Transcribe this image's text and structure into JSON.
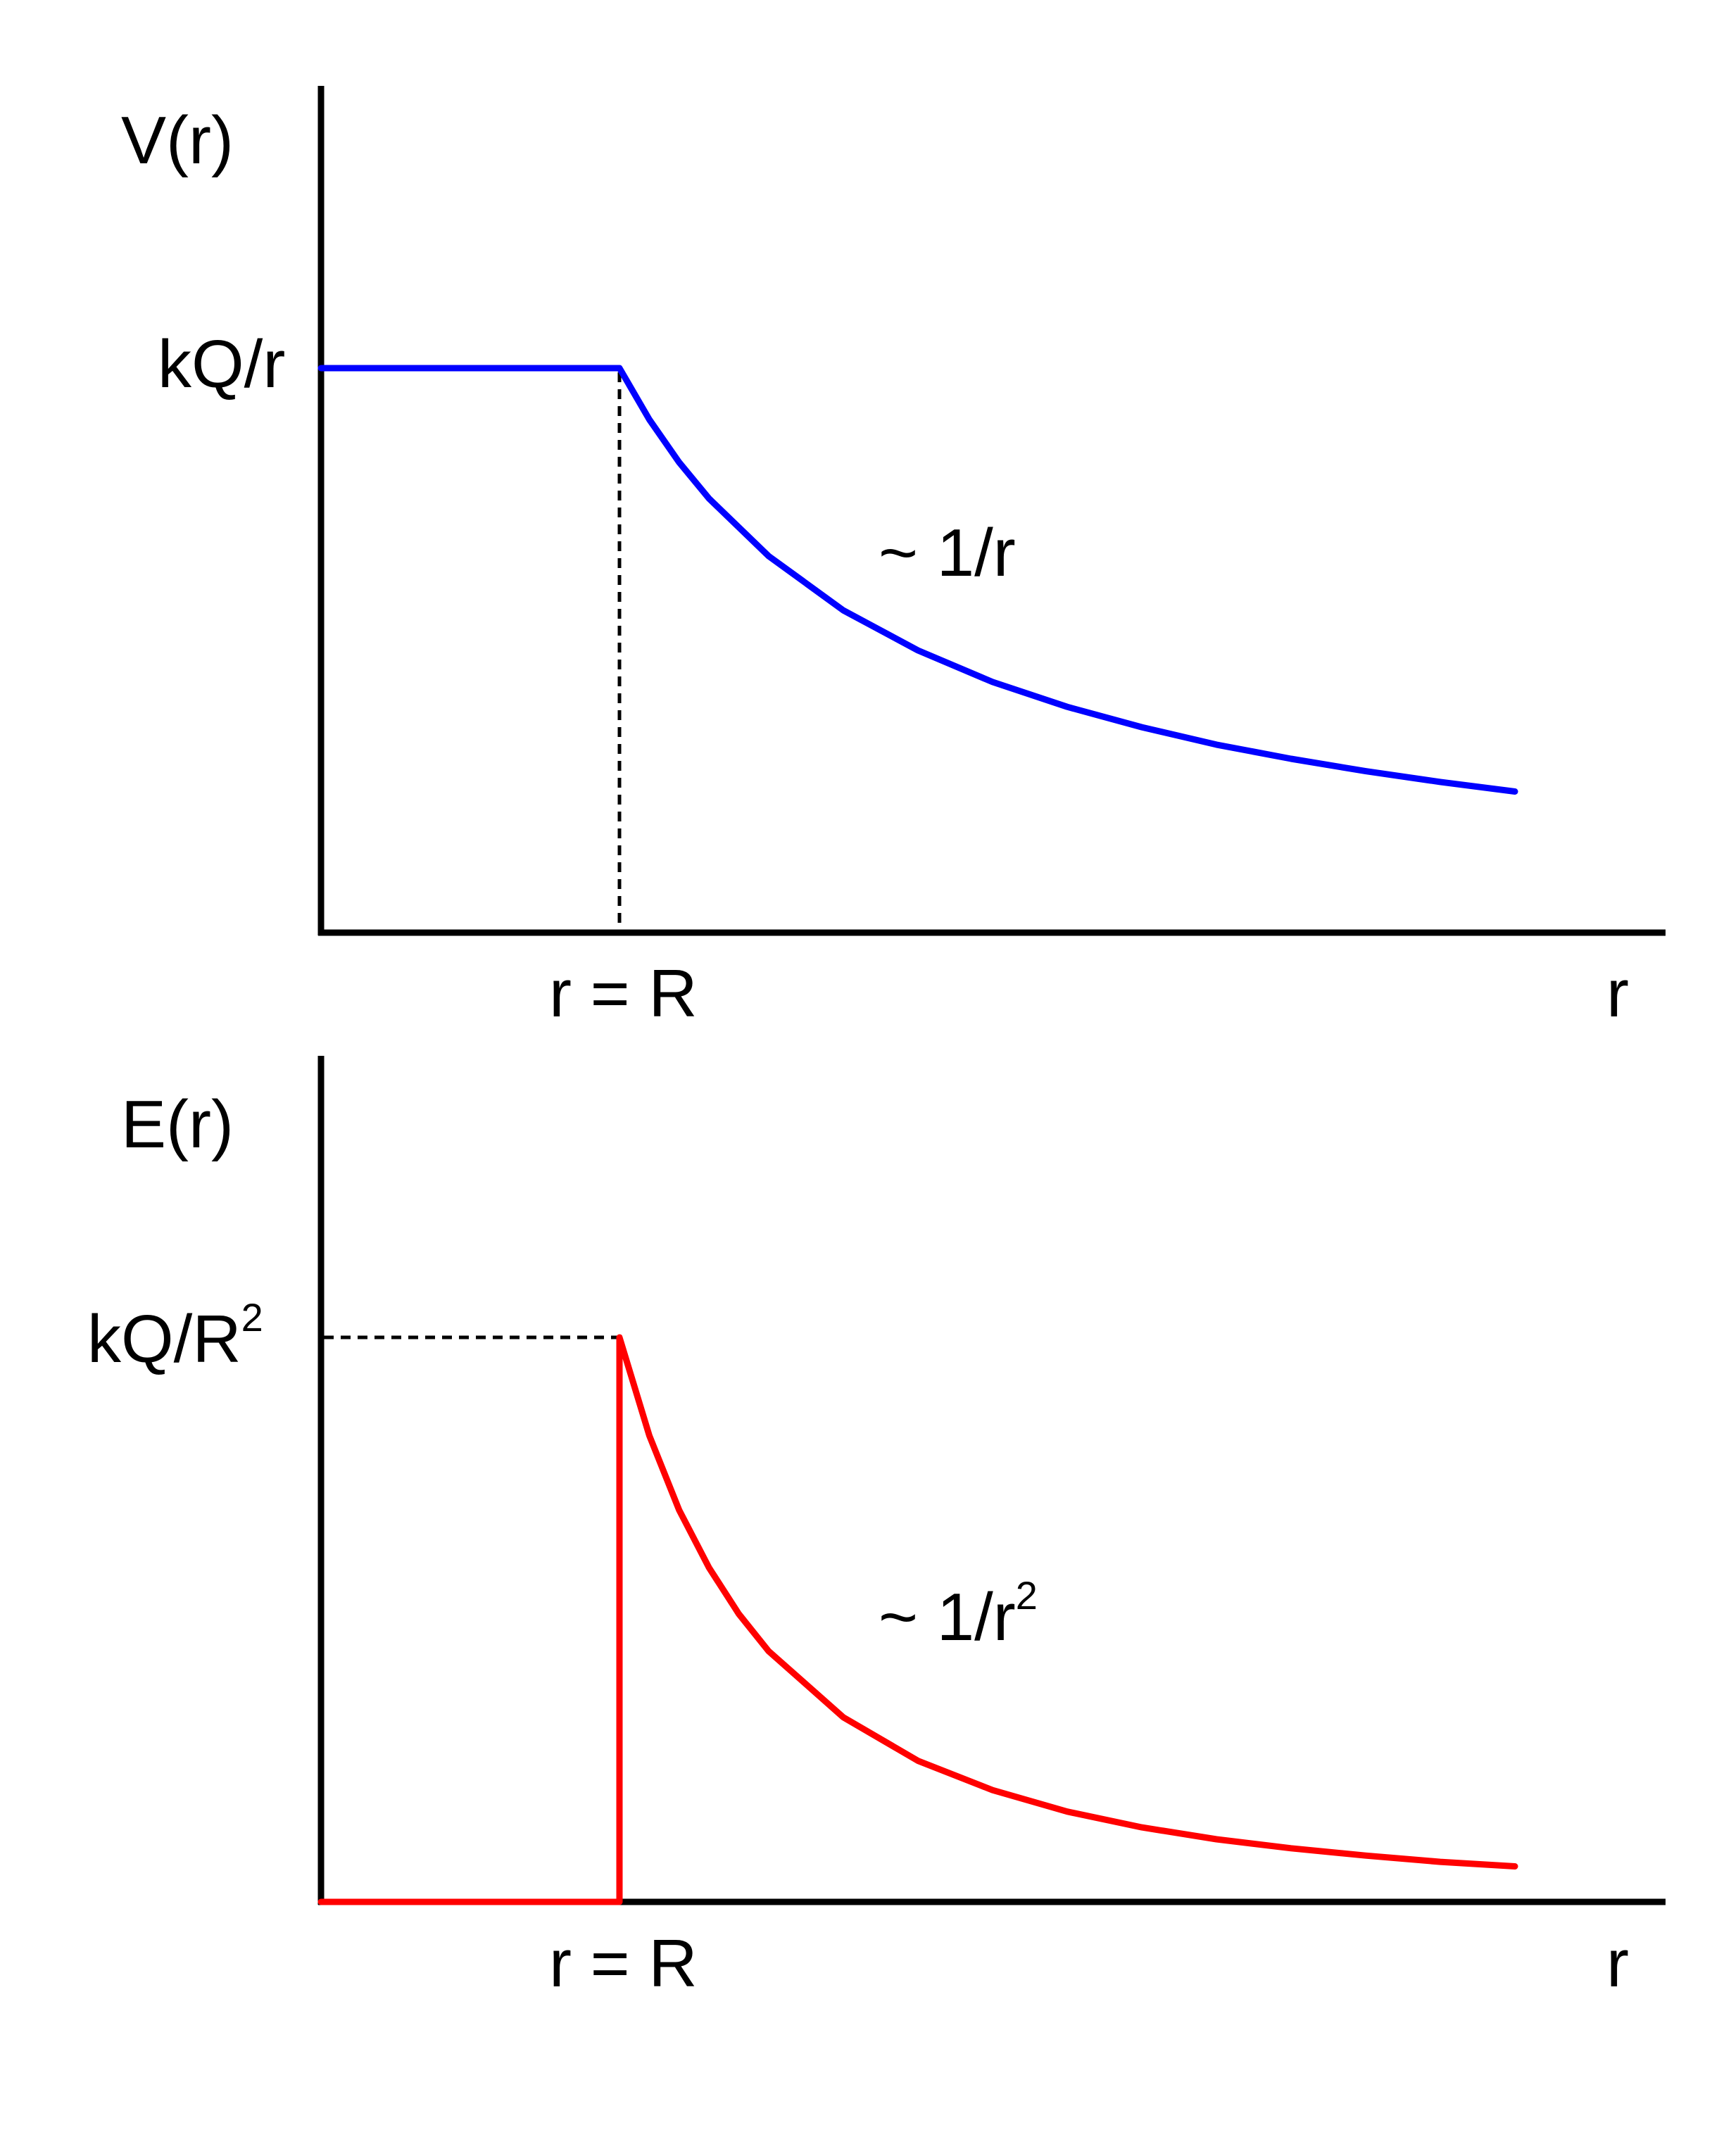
{
  "chart_data": [
    {
      "type": "line",
      "ylabel": "V(r)",
      "xlabel": "r",
      "y_tick_label": "kQ/r",
      "x_tick_label": "r = R",
      "annotation": "~ 1/r",
      "curve_color": "#0000ff",
      "xlim": [
        0,
        4.5
      ],
      "ylim": [
        0,
        1.5
      ],
      "R": 1,
      "series": [
        {
          "x": [
            0,
            1,
            1.1,
            1.2,
            1.3,
            1.5,
            1.75,
            2.0,
            2.25,
            2.5,
            2.75,
            3.0,
            3.25,
            3.5,
            3.75,
            4.0
          ],
          "values": [
            1,
            1,
            0.909,
            0.833,
            0.769,
            0.667,
            0.571,
            0.5,
            0.444,
            0.4,
            0.364,
            0.333,
            0.308,
            0.286,
            0.267,
            0.25
          ]
        }
      ]
    },
    {
      "type": "line",
      "ylabel": "E(r)",
      "xlabel": "r",
      "y_tick_label": "kQ/R",
      "y_tick_label_exponent": "2",
      "x_tick_label": "r = R",
      "annotation": "~ 1/r",
      "annotation_exponent": "2",
      "curve_color": "#ff0000",
      "xlim": [
        0,
        4.5
      ],
      "ylim": [
        0,
        1.5
      ],
      "R": 1,
      "series": [
        {
          "x": [
            0,
            1,
            1,
            1.1,
            1.2,
            1.3,
            1.4,
            1.5,
            1.75,
            2.0,
            2.25,
            2.5,
            2.75,
            3.0,
            3.25,
            3.5,
            3.75,
            4.0
          ],
          "values": [
            0,
            0,
            1,
            0.826,
            0.694,
            0.592,
            0.51,
            0.444,
            0.327,
            0.25,
            0.198,
            0.16,
            0.132,
            0.111,
            0.095,
            0.082,
            0.071,
            0.063
          ]
        }
      ]
    }
  ]
}
